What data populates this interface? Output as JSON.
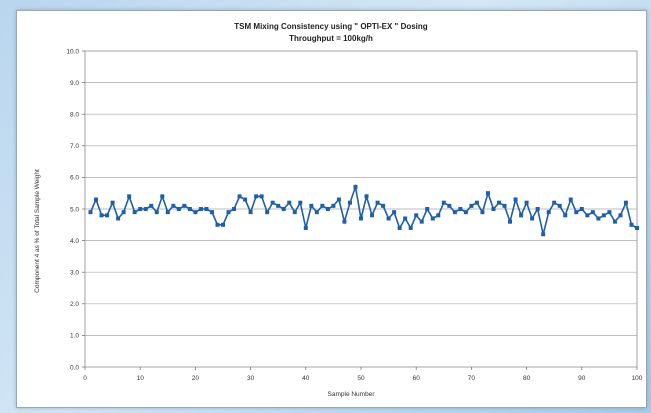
{
  "chart_data": {
    "type": "line",
    "title": "TSM Mixing Consistency using \" OPTI-EX \" Dosing",
    "subtitle": "Throughput = 100kg/h",
    "xlabel": "Sample Number",
    "ylabel": "Component 4 as % of Total Sample Weight",
    "xlim": [
      0,
      100
    ],
    "ylim": [
      0.0,
      10.0
    ],
    "xticks": [
      "0",
      "10",
      "20",
      "30",
      "40",
      "50",
      "60",
      "70",
      "80",
      "90",
      "100"
    ],
    "yticks": [
      "0.0",
      "1.0",
      "2.0",
      "3.0",
      "4.0",
      "5.0",
      "6.0",
      "7.0",
      "8.0",
      "9.0",
      "10.0"
    ],
    "grid": "horizontal",
    "legend": "none",
    "series": [
      {
        "color": "#1f5fa6",
        "x": [
          1,
          2,
          3,
          4,
          5,
          6,
          7,
          8,
          9,
          10,
          11,
          12,
          13,
          14,
          15,
          16,
          17,
          18,
          19,
          20,
          21,
          22,
          23,
          24,
          25,
          26,
          27,
          28,
          29,
          30,
          31,
          32,
          33,
          34,
          35,
          36,
          37,
          38,
          39,
          40,
          41,
          42,
          43,
          44,
          45,
          46,
          47,
          48,
          49,
          50,
          51,
          52,
          53,
          54,
          55,
          56,
          57,
          58,
          59,
          60,
          61,
          62,
          63,
          64,
          65,
          66,
          67,
          68,
          69,
          70,
          71,
          72,
          73,
          74,
          75,
          76,
          77,
          78,
          79,
          80,
          81,
          82,
          83,
          84,
          85,
          86,
          87,
          88,
          89,
          90,
          91,
          92,
          93,
          94,
          95,
          96,
          97,
          98,
          99,
          100
        ],
        "values": [
          4.9,
          5.3,
          4.8,
          4.8,
          5.2,
          4.7,
          4.9,
          5.4,
          4.9,
          5.0,
          5.0,
          5.1,
          4.9,
          5.4,
          4.9,
          5.1,
          5.0,
          5.1,
          5.0,
          4.9,
          5.0,
          5.0,
          4.9,
          4.5,
          4.5,
          4.9,
          5.0,
          5.4,
          5.3,
          4.9,
          5.4,
          5.4,
          4.9,
          5.2,
          5.1,
          5.0,
          5.2,
          4.9,
          5.2,
          4.4,
          5.1,
          4.9,
          5.1,
          5.0,
          5.1,
          5.3,
          4.6,
          5.2,
          5.7,
          4.7,
          5.4,
          4.8,
          5.2,
          5.1,
          4.7,
          4.9,
          4.4,
          4.7,
          4.4,
          4.8,
          4.6,
          5.0,
          4.7,
          4.8,
          5.2,
          5.1,
          4.9,
          5.0,
          4.9,
          5.1,
          5.2,
          4.9,
          5.5,
          5.0,
          5.2,
          5.1,
          4.6,
          5.3,
          4.8,
          5.2,
          4.7,
          5.0,
          4.2,
          4.9,
          5.2,
          5.1,
          4.8,
          5.3,
          4.9,
          5.0,
          4.8,
          4.9,
          4.7,
          4.8,
          4.9,
          4.6,
          4.8,
          5.2,
          4.5,
          4.4
        ]
      }
    ]
  }
}
